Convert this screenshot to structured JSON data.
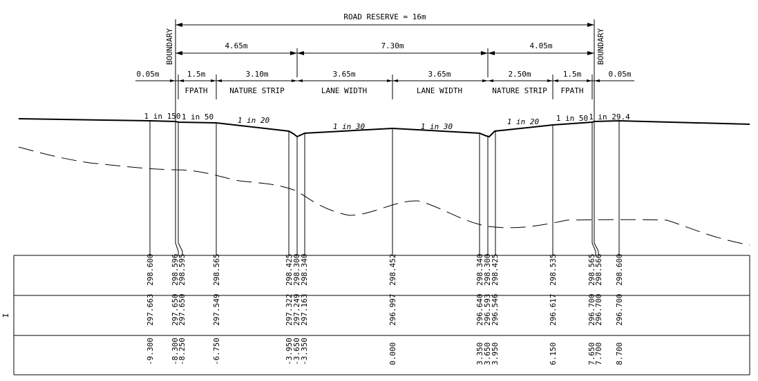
{
  "road_reserve": {
    "label": "ROAD RESERVE = 16m"
  },
  "boundary_labels": [
    "BOUNDARY",
    "BOUNDARY"
  ],
  "dims_mid": [
    "4.65m",
    "7.30m",
    "4.05m"
  ],
  "dims_small": [
    "0.05m",
    "1.5m",
    "3.10m",
    "3.65m",
    "3.65m",
    "2.50m",
    "1.5m",
    "0.05m"
  ],
  "zones": [
    "FPATH",
    "NATURE STRIP",
    "LANE WIDTH",
    "LANE WIDTH",
    "NATURE STRIP",
    "FPATH"
  ],
  "grades": [
    "1 in 150",
    "1 in 50",
    "1 in 20",
    "1 in 30",
    "1 in 30",
    "1 in 20",
    "1 in 50",
    "1 in 29.4"
  ],
  "table": {
    "side_mark": "I",
    "design_levels": [
      "298.600",
      "298.596",
      "298.595",
      "298.565",
      "298.425",
      "298.300",
      "298.340",
      "298.452",
      "298.340",
      "298.300",
      "298.425",
      "298.535",
      "298.565",
      "298.566",
      "298.600"
    ],
    "existing_levels": [
      "297.663",
      "297.650",
      "297.650",
      "297.549",
      "297.322",
      "297.249",
      "297.163",
      "296.997",
      "296.640",
      "296.593",
      "296.546",
      "296.617",
      "296.700",
      "296.700",
      "296.700"
    ],
    "offsets": [
      "-9.300",
      "-8.300",
      "-8.250",
      "-6.750",
      "-3.950",
      "-3.650",
      "-3.350",
      "0.000",
      "3.350",
      "3.650",
      "3.950",
      "6.150",
      "7.650",
      "7.700",
      "8.700"
    ]
  }
}
